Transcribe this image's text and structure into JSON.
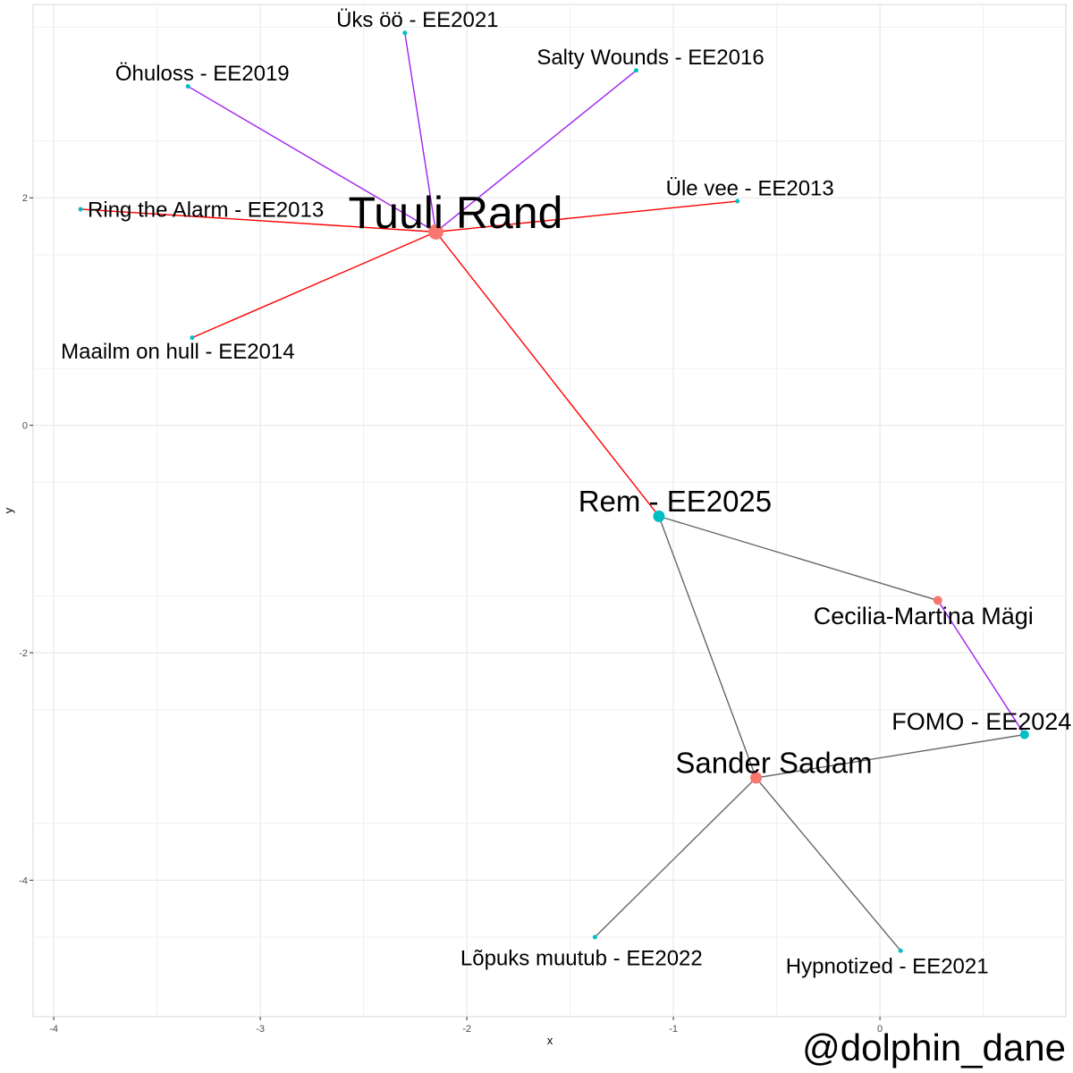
{
  "chart_data": {
    "type": "scatter",
    "xlabel": "x",
    "ylabel": "y",
    "xlim": [
      -4.1,
      0.9
    ],
    "ylim": [
      -5.2,
      3.7
    ],
    "x_ticks": [
      -4,
      -3,
      -2,
      -1,
      0
    ],
    "x_tick_labels": [
      "-4",
      "-3",
      "-2",
      "-1",
      "0"
    ],
    "y_ticks": [
      2,
      0,
      -2,
      -4
    ],
    "y_tick_labels": [
      "2",
      "0",
      "-2",
      "-4"
    ],
    "grid": true,
    "colors": {
      "person": "#f8766d",
      "song": "#00bfc4",
      "edge_red": "#ff0000",
      "edge_purple": "#a020f0",
      "edge_grey": "#666666"
    },
    "nodes": [
      {
        "id": "tuuli",
        "label": "Tuuli Rand",
        "kind": "person",
        "x": -2.15,
        "y": 1.7,
        "size": "large"
      },
      {
        "id": "sander",
        "label": "Sander Sadam",
        "kind": "person",
        "x": -0.6,
        "y": -3.1,
        "size": "medium"
      },
      {
        "id": "cecilia",
        "label": "Cecilia-Martina Mägi",
        "kind": "person",
        "x": 0.28,
        "y": -1.54,
        "size": "small"
      },
      {
        "id": "rem",
        "label": "Rem - EE2025",
        "kind": "song",
        "x": -1.07,
        "y": -0.8,
        "size": "medium"
      },
      {
        "id": "fomo",
        "label": "FOMO - EE2024",
        "kind": "song",
        "x": 0.7,
        "y": -2.72,
        "size": "small"
      },
      {
        "id": "uksoo",
        "label": "Üks öö - EE2021",
        "kind": "song",
        "x": -2.3,
        "y": 3.45,
        "size": "tiny"
      },
      {
        "id": "salty",
        "label": "Salty Wounds - EE2016",
        "kind": "song",
        "x": -1.18,
        "y": 3.12,
        "size": "tiny"
      },
      {
        "id": "ohuloss",
        "label": "Öhuloss - EE2019",
        "kind": "song",
        "x": -3.35,
        "y": 2.98,
        "size": "tiny"
      },
      {
        "id": "ulevee",
        "label": "Üle vee - EE2013",
        "kind": "song",
        "x": -0.69,
        "y": 1.97,
        "size": "tiny"
      },
      {
        "id": "ring",
        "label": "Ring the Alarm - EE2013",
        "kind": "song",
        "x": -3.87,
        "y": 1.9,
        "size": "tiny"
      },
      {
        "id": "maailm",
        "label": "Maailm on hull - EE2014",
        "kind": "song",
        "x": -3.33,
        "y": 0.77,
        "size": "tiny"
      },
      {
        "id": "lopuks",
        "label": "Lõpuks muutub - EE2022",
        "kind": "song",
        "x": -1.38,
        "y": -4.5,
        "size": "tiny"
      },
      {
        "id": "hypno",
        "label": "Hypnotized - EE2021",
        "kind": "song",
        "x": 0.1,
        "y": -4.62,
        "size": "tiny"
      }
    ],
    "edges": [
      {
        "from": "tuuli",
        "to": "uksoo",
        "color": "edge_purple"
      },
      {
        "from": "tuuli",
        "to": "salty",
        "color": "edge_purple"
      },
      {
        "from": "tuuli",
        "to": "ohuloss",
        "color": "edge_purple"
      },
      {
        "from": "tuuli",
        "to": "ring",
        "color": "edge_red"
      },
      {
        "from": "tuuli",
        "to": "ulevee",
        "color": "edge_red"
      },
      {
        "from": "tuuli",
        "to": "maailm",
        "color": "edge_red"
      },
      {
        "from": "tuuli",
        "to": "rem",
        "color": "edge_red"
      },
      {
        "from": "rem",
        "to": "cecilia",
        "color": "edge_grey"
      },
      {
        "from": "rem",
        "to": "sander",
        "color": "edge_grey"
      },
      {
        "from": "cecilia",
        "to": "fomo",
        "color": "edge_purple"
      },
      {
        "from": "sander",
        "to": "fomo",
        "color": "edge_grey"
      },
      {
        "from": "sander",
        "to": "lopuks",
        "color": "edge_grey"
      },
      {
        "from": "sander",
        "to": "hypno",
        "color": "edge_grey"
      }
    ]
  },
  "credit": "@dolphin_dane"
}
